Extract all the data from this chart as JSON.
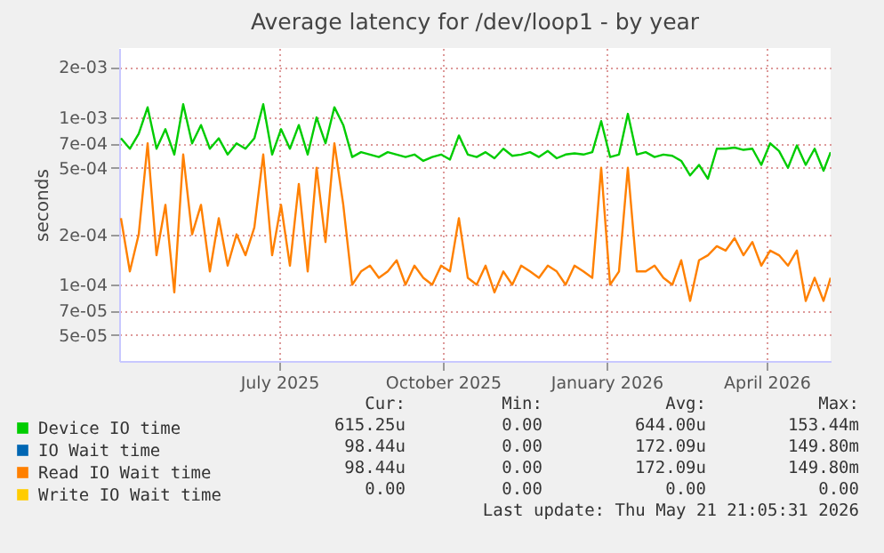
{
  "chart_data": {
    "type": "line",
    "title": "Average latency for /dev/loop1 - by year",
    "ylabel": "seconds",
    "log": "y",
    "grid": true,
    "legend": "bottom left",
    "xlim": [
      "2025-04-16",
      "2026-05-21"
    ],
    "xticks": [
      {
        "value": "2025-07-15",
        "label": "July 2025"
      },
      {
        "value": "2025-10-15",
        "label": "October 2025"
      },
      {
        "value": "2026-01-15",
        "label": "January 2026"
      },
      {
        "value": "2026-04-15",
        "label": "April 2026"
      }
    ],
    "ylim": [
      3.5e-05,
      0.0026
    ],
    "yticks": [
      {
        "value": 5e-05,
        "label": "5e-05"
      },
      {
        "value": 7e-05,
        "label": "7e-05"
      },
      {
        "value": 0.0001,
        "label": "1e-04"
      },
      {
        "value": 0.0002,
        "label": "2e-04"
      },
      {
        "value": 0.0005,
        "label": "5e-04"
      },
      {
        "value": 0.0007,
        "label": "7e-04"
      },
      {
        "value": 0.001,
        "label": "1e-03"
      },
      {
        "value": 0.002,
        "label": "2e-03"
      }
    ],
    "x": [
      "2025-04-17",
      "2025-04-22",
      "2025-04-27",
      "2025-05-02",
      "2025-05-07",
      "2025-05-12",
      "2025-05-17",
      "2025-05-22",
      "2025-05-27",
      "2025-06-01",
      "2025-06-06",
      "2025-06-11",
      "2025-06-16",
      "2025-06-21",
      "2025-06-26",
      "2025-07-01",
      "2025-07-06",
      "2025-07-11",
      "2025-07-16",
      "2025-07-21",
      "2025-07-26",
      "2025-07-31",
      "2025-08-05",
      "2025-08-10",
      "2025-08-15",
      "2025-08-20",
      "2025-08-25",
      "2025-08-30",
      "2025-09-04",
      "2025-09-09",
      "2025-09-14",
      "2025-09-19",
      "2025-09-24",
      "2025-09-29",
      "2025-10-04",
      "2025-10-09",
      "2025-10-14",
      "2025-10-19",
      "2025-10-24",
      "2025-10-29",
      "2025-11-03",
      "2025-11-08",
      "2025-11-13",
      "2025-11-18",
      "2025-11-23",
      "2025-11-28",
      "2025-12-03",
      "2025-12-08",
      "2025-12-13",
      "2025-12-18",
      "2025-12-23",
      "2025-12-28",
      "2026-01-02",
      "2026-01-07",
      "2026-01-12",
      "2026-01-17",
      "2026-01-22",
      "2026-01-27",
      "2026-02-01",
      "2026-02-06",
      "2026-02-11",
      "2026-02-16",
      "2026-02-21",
      "2026-02-26",
      "2026-03-03",
      "2026-03-08",
      "2026-03-13",
      "2026-03-18",
      "2026-03-23",
      "2026-03-28",
      "2026-04-02",
      "2026-04-07",
      "2026-04-12",
      "2026-04-17",
      "2026-04-22",
      "2026-04-27",
      "2026-05-02",
      "2026-05-07",
      "2026-05-12",
      "2026-05-17",
      "2026-05-21"
    ],
    "series": [
      {
        "name": "Device IO time",
        "color": "#00cc00",
        "values": [
          0.00075,
          0.00065,
          0.0008,
          0.00115,
          0.00065,
          0.00085,
          0.0006,
          0.0012,
          0.0007,
          0.0009,
          0.00065,
          0.00075,
          0.0006,
          0.0007,
          0.00065,
          0.00075,
          0.0012,
          0.0006,
          0.00085,
          0.00065,
          0.0009,
          0.0006,
          0.001,
          0.0007,
          0.00115,
          0.0009,
          0.00058,
          0.00062,
          0.0006,
          0.00058,
          0.00062,
          0.0006,
          0.00058,
          0.0006,
          0.00055,
          0.00058,
          0.0006,
          0.00056,
          0.00078,
          0.0006,
          0.00058,
          0.00062,
          0.00057,
          0.00065,
          0.00059,
          0.0006,
          0.00062,
          0.00058,
          0.00063,
          0.00057,
          0.0006,
          0.00061,
          0.0006,
          0.00062,
          0.00095,
          0.00058,
          0.0006,
          0.00105,
          0.0006,
          0.00062,
          0.00058,
          0.0006,
          0.00059,
          0.00055,
          0.00045,
          0.00052,
          0.00043,
          0.00065,
          0.00065,
          0.00066,
          0.00064,
          0.00065,
          0.00052,
          0.0007,
          0.00063,
          0.0005,
          0.00068,
          0.00052,
          0.00065,
          0.00048,
          0.00062
        ]
      },
      {
        "name": "IO Wait time",
        "color": "#0066b3",
        "values": [
          null,
          null,
          null,
          null,
          null,
          null,
          null,
          null,
          null,
          null,
          null,
          null,
          null,
          null,
          null,
          null,
          null,
          null,
          null,
          null,
          null,
          null,
          null,
          null,
          null,
          null,
          null,
          null,
          null,
          null,
          null,
          null,
          null,
          null,
          null,
          null,
          null,
          null,
          null,
          null,
          null,
          null,
          null,
          null,
          null,
          null,
          null,
          null,
          null,
          null,
          null,
          null,
          null,
          null,
          null,
          null,
          null,
          null,
          null,
          null,
          null,
          null,
          null,
          null,
          null,
          null,
          null,
          null,
          null,
          null,
          null,
          null,
          null,
          null,
          null,
          null,
          null,
          null,
          null,
          null,
          null
        ]
      },
      {
        "name": "Read IO Wait time",
        "color": "#ff8000",
        "values": [
          0.00025,
          0.00012,
          0.0002,
          0.0007,
          0.00015,
          0.0003,
          9e-05,
          0.0006,
          0.0002,
          0.0003,
          0.00012,
          0.00025,
          0.00013,
          0.0002,
          0.00015,
          0.00022,
          0.0006,
          0.00015,
          0.0003,
          0.00013,
          0.0004,
          0.00012,
          0.0005,
          0.00018,
          0.0007,
          0.0003,
          0.0001,
          0.00012,
          0.00013,
          0.00011,
          0.00012,
          0.00014,
          0.0001,
          0.00013,
          0.00011,
          0.0001,
          0.00013,
          0.00012,
          0.00025,
          0.00011,
          0.0001,
          0.00013,
          9e-05,
          0.00012,
          0.0001,
          0.00013,
          0.00012,
          0.00011,
          0.00013,
          0.00012,
          0.0001,
          0.00013,
          0.00012,
          0.00011,
          0.0005,
          0.0001,
          0.00012,
          0.0005,
          0.00012,
          0.00012,
          0.00013,
          0.00011,
          0.0001,
          0.00014,
          8e-05,
          0.00014,
          0.00015,
          0.00017,
          0.00016,
          0.00019,
          0.00015,
          0.00018,
          0.00013,
          0.00016,
          0.00015,
          0.00013,
          0.00016,
          8e-05,
          0.00011,
          8e-05,
          0.00011
        ]
      },
      {
        "name": "Write IO Wait time",
        "color": "#ffcc00",
        "values": [
          null,
          null,
          null,
          null,
          null,
          null,
          null,
          null,
          null,
          null,
          null,
          null,
          null,
          null,
          null,
          null,
          null,
          null,
          null,
          null,
          null,
          null,
          null,
          null,
          null,
          null,
          null,
          null,
          null,
          null,
          null,
          null,
          null,
          null,
          null,
          null,
          null,
          null,
          null,
          null,
          null,
          null,
          null,
          null,
          null,
          null,
          null,
          null,
          null,
          null,
          null,
          null,
          null,
          null,
          null,
          null,
          null,
          null,
          null,
          null,
          null,
          null,
          null,
          null,
          null,
          null,
          null,
          null,
          null,
          null,
          null,
          null,
          null,
          null,
          null,
          null,
          null,
          null,
          null,
          null,
          null
        ]
      }
    ],
    "annotations": [
      "Cur:",
      "Min:",
      "Avg:",
      "Max:",
      "615.25u",
      "0.00",
      "644.00u",
      "153.44m",
      "98.44u",
      "0.00",
      "172.09u",
      "149.80m",
      "98.44u",
      "0.00",
      "172.09u",
      "149.80m",
      "0.00",
      "0.00",
      "0.00",
      "0.00",
      "Last update: Thu May 21 21:05:31 2026"
    ]
  }
}
